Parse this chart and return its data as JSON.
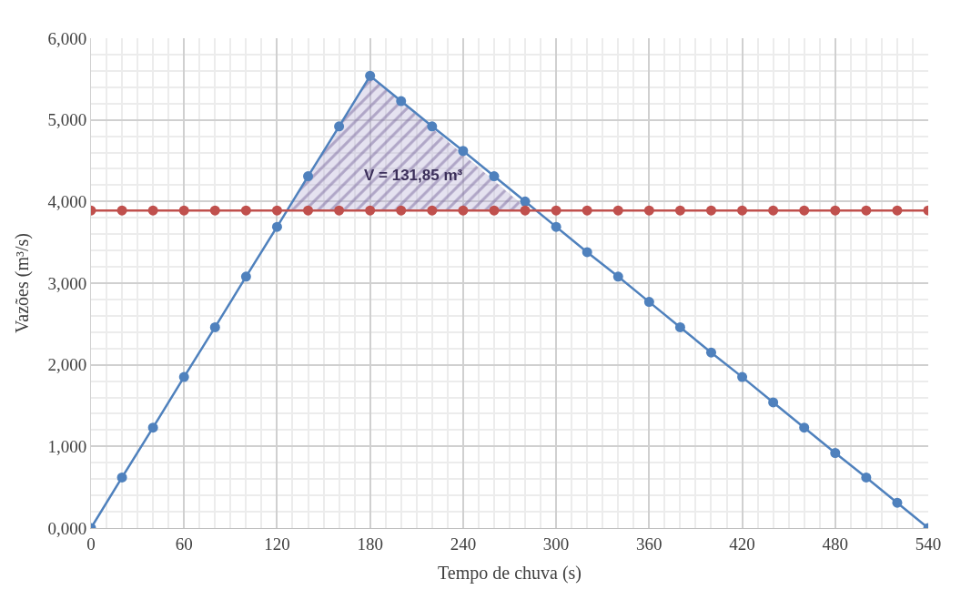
{
  "chart_data": {
    "type": "line",
    "xlabel": "Tempo de chuva (s)",
    "ylabel": "Vazões (m³/s)",
    "x": [
      0,
      20,
      40,
      60,
      80,
      100,
      120,
      140,
      160,
      180,
      200,
      220,
      240,
      260,
      280,
      300,
      320,
      340,
      360,
      380,
      400,
      420,
      440,
      460,
      480,
      500,
      520,
      540
    ],
    "series": [
      {
        "type": "area",
        "color": "#7b6a9e",
        "x": [
          126.5,
          180,
          282.5
        ],
        "values": [
          3.89,
          5.54,
          3.89
        ],
        "marker": "none"
      },
      {
        "color": "#4f81bd",
        "values": [
          0,
          0.62,
          1.23,
          1.85,
          2.46,
          3.08,
          3.69,
          4.31,
          4.92,
          5.54,
          5.23,
          4.92,
          4.62,
          4.31,
          4.0,
          3.69,
          3.38,
          3.08,
          2.77,
          2.46,
          2.15,
          1.85,
          1.54,
          1.23,
          0.92,
          0.62,
          0.31,
          0
        ]
      },
      {
        "color": "#c0504d",
        "values": [
          3.89,
          3.89,
          3.89,
          3.89,
          3.89,
          3.89,
          3.89,
          3.89,
          3.89,
          3.89,
          3.89,
          3.89,
          3.89,
          3.89,
          3.89,
          3.89,
          3.89,
          3.89,
          3.89,
          3.89,
          3.89,
          3.89,
          3.89,
          3.89,
          3.89,
          3.89,
          3.89,
          3.89
        ]
      }
    ],
    "annotations": [
      "V = 131,85 m³"
    ],
    "xlim": [
      0,
      540
    ],
    "xticks": [
      0,
      60,
      120,
      180,
      240,
      300,
      360,
      420,
      480,
      540
    ],
    "ylim": [
      0,
      6
    ],
    "yticks": [
      {
        "value": 0,
        "label": "0,000"
      },
      {
        "value": 1,
        "label": "1,000"
      },
      {
        "value": 2,
        "label": "2,000"
      },
      {
        "value": 3,
        "label": "3,000"
      },
      {
        "value": 4,
        "label": "4,000"
      },
      {
        "value": 5,
        "label": "5,000"
      },
      {
        "value": 6,
        "label": "6,000"
      }
    ],
    "grid": true,
    "marker": "circle",
    "line_style": "solid"
  }
}
